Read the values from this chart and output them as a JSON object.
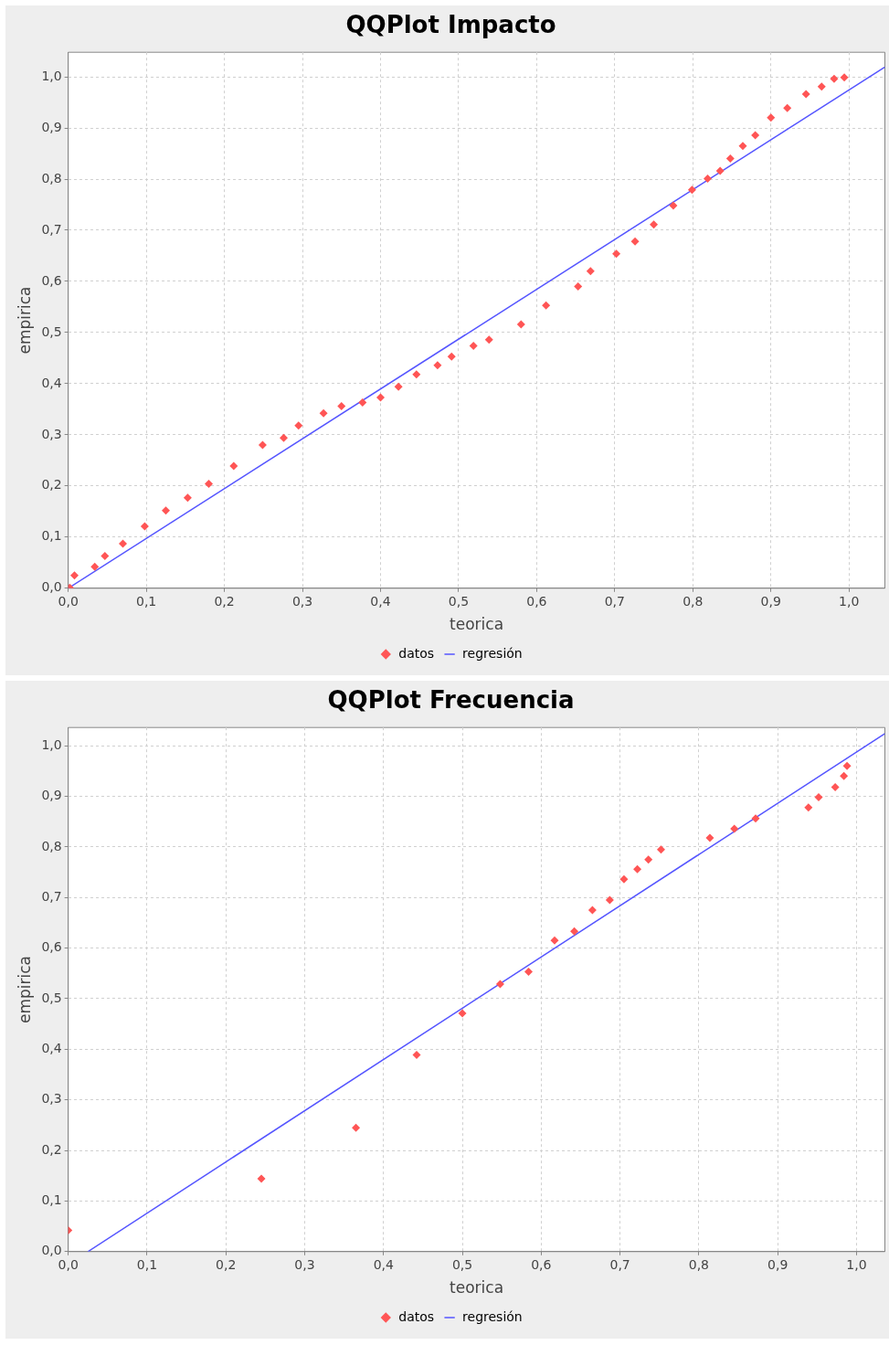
{
  "chart_data": [
    {
      "type": "scatter",
      "title": "QQPlot Impacto",
      "xlabel": "teorica",
      "ylabel": "empirica",
      "xlim": [
        0,
        1.046
      ],
      "ylim": [
        0,
        1.048
      ],
      "xticks": [
        {
          "value": 0,
          "label": "0,0"
        },
        {
          "value": 0.1,
          "label": "0,1"
        },
        {
          "value": 0.2,
          "label": "0,2"
        },
        {
          "value": 0.3,
          "label": "0,3"
        },
        {
          "value": 0.4,
          "label": "0,4"
        },
        {
          "value": 0.5,
          "label": "0,5"
        },
        {
          "value": 0.6,
          "label": "0,6"
        },
        {
          "value": 0.7,
          "label": "0,7"
        },
        {
          "value": 0.8,
          "label": "0,8"
        },
        {
          "value": 0.9,
          "label": "0,9"
        },
        {
          "value": 1,
          "label": "1,0"
        }
      ],
      "yticks": [
        {
          "value": 0,
          "label": "0,0"
        },
        {
          "value": 0.1,
          "label": "0,1"
        },
        {
          "value": 0.2,
          "label": "0,2"
        },
        {
          "value": 0.3,
          "label": "0,3"
        },
        {
          "value": 0.4,
          "label": "0,4"
        },
        {
          "value": 0.5,
          "label": "0,5"
        },
        {
          "value": 0.6,
          "label": "0,6"
        },
        {
          "value": 0.7,
          "label": "0,7"
        },
        {
          "value": 0.8,
          "label": "0,8"
        },
        {
          "value": 0.9,
          "label": "0,9"
        },
        {
          "value": 1,
          "label": "1,0"
        }
      ],
      "grid": true,
      "legend": "bottom",
      "series": [
        {
          "name": "datos",
          "type": "scatter",
          "marker": "diamond",
          "color": "#ff5555",
          "x": [
            0.002,
            0.008,
            0.034,
            0.047,
            0.07,
            0.098,
            0.125,
            0.153,
            0.18,
            0.212,
            0.249,
            0.276,
            0.295,
            0.327,
            0.35,
            0.377,
            0.4,
            0.423,
            0.446,
            0.473,
            0.491,
            0.519,
            0.539,
            0.58,
            0.612,
            0.653,
            0.669,
            0.702,
            0.726,
            0.75,
            0.775,
            0.799,
            0.819,
            0.835,
            0.848,
            0.864,
            0.88,
            0.9,
            0.921,
            0.945,
            0.965,
            0.981,
            0.994
          ],
          "values": [
            0.001,
            0.025,
            0.042,
            0.063,
            0.087,
            0.121,
            0.152,
            0.177,
            0.204,
            0.239,
            0.28,
            0.294,
            0.318,
            0.342,
            0.356,
            0.363,
            0.373,
            0.394,
            0.418,
            0.436,
            0.453,
            0.474,
            0.486,
            0.516,
            0.553,
            0.59,
            0.62,
            0.654,
            0.678,
            0.711,
            0.748,
            0.779,
            0.801,
            0.816,
            0.84,
            0.865,
            0.886,
            0.92,
            0.939,
            0.966,
            0.981,
            0.996,
            0.999
          ]
        },
        {
          "name": "regresión",
          "type": "line",
          "marker": "none",
          "color": "#5555ff",
          "x": [
            0,
            1.046
          ],
          "values": [
            0,
            1.019
          ]
        }
      ]
    },
    {
      "type": "scatter",
      "title": "QQPlot Frecuencia",
      "xlabel": "teorica",
      "ylabel": "empirica",
      "xlim": [
        0,
        1.036
      ],
      "ylim": [
        0,
        1.036
      ],
      "xticks": [
        {
          "value": 0,
          "label": "0,0"
        },
        {
          "value": 0.1,
          "label": "0,1"
        },
        {
          "value": 0.2,
          "label": "0,2"
        },
        {
          "value": 0.3,
          "label": "0,3"
        },
        {
          "value": 0.4,
          "label": "0,4"
        },
        {
          "value": 0.5,
          "label": "0,5"
        },
        {
          "value": 0.6,
          "label": "0,6"
        },
        {
          "value": 0.7,
          "label": "0,7"
        },
        {
          "value": 0.8,
          "label": "0,8"
        },
        {
          "value": 0.9,
          "label": "0,9"
        },
        {
          "value": 1,
          "label": "1,0"
        }
      ],
      "yticks": [
        {
          "value": 0,
          "label": "0,0"
        },
        {
          "value": 0.1,
          "label": "0,1"
        },
        {
          "value": 0.2,
          "label": "0,2"
        },
        {
          "value": 0.3,
          "label": "0,3"
        },
        {
          "value": 0.4,
          "label": "0,4"
        },
        {
          "value": 0.5,
          "label": "0,5"
        },
        {
          "value": 0.6,
          "label": "0,6"
        },
        {
          "value": 0.7,
          "label": "0,7"
        },
        {
          "value": 0.8,
          "label": "0,8"
        },
        {
          "value": 0.9,
          "label": "0,9"
        },
        {
          "value": 1,
          "label": "1,0"
        }
      ],
      "grid": true,
      "legend": "bottom",
      "series": [
        {
          "name": "datos",
          "type": "scatter",
          "marker": "diamond",
          "color": "#ff5555",
          "x": [
            0,
            0.245,
            0.365,
            0.442,
            0.5,
            0.548,
            0.584,
            0.617,
            0.642,
            0.665,
            0.687,
            0.705,
            0.722,
            0.736,
            0.752,
            0.814,
            0.845,
            0.872,
            0.939,
            0.952,
            0.973,
            0.984,
            0.988
          ],
          "values": [
            0.042,
            0.144,
            0.245,
            0.389,
            0.471,
            0.529,
            0.553,
            0.615,
            0.633,
            0.675,
            0.695,
            0.736,
            0.756,
            0.775,
            0.795,
            0.818,
            0.836,
            0.856,
            0.878,
            0.898,
            0.918,
            0.94,
            0.96
          ]
        },
        {
          "name": "regresión",
          "type": "line",
          "marker": "none",
          "color": "#5555ff",
          "x": [
            0.025,
            1.036
          ],
          "values": [
            0,
            1.024
          ]
        }
      ]
    }
  ]
}
